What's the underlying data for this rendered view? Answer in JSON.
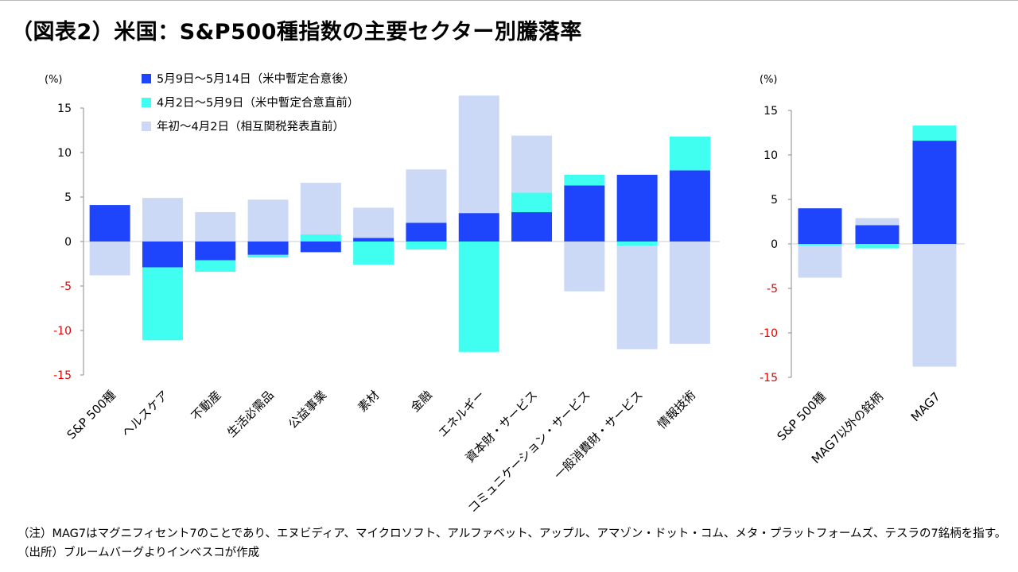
{
  "title": "（図表2）米国：S&P500種指数の主要セクター別騰落率",
  "notes": {
    "note": "（注）MAG7はマグニフィセント7のことであり、エヌビディア、マイクロソフト、アルファベット、アップル、アマゾン・ドット・コム、メタ・プラットフォームズ、テスラの7銘柄を指す。",
    "source": "（出所）ブルームバーグよりインベスコが作成"
  },
  "colors": {
    "s1": "#1f45fc",
    "s2": "#41fff0",
    "s3": "#ccd9f6",
    "negative_tick": "#e00000",
    "zero_line": "#cccccc",
    "axis": "#888888"
  },
  "chart_data": [
    {
      "type": "bar",
      "stacked": true,
      "unit_label": "(%)",
      "ylim": [
        -15,
        15
      ],
      "yticks": [
        15,
        10,
        5,
        0,
        -5,
        -10,
        -15
      ],
      "legend_position": "top",
      "categories": [
        "S&P 500種",
        "ヘルスケア",
        "不動産",
        "生活必需品",
        "公益事業",
        "素材",
        "金融",
        "エネルギー",
        "資本財・サービス",
        "コミュニケーション・サービス",
        "一般消費財・サービス",
        "情報技術"
      ],
      "series": [
        {
          "name": "5月9日～5月14日（米中暫定合意後）",
          "color_key": "s1",
          "values": [
            4.1,
            -2.9,
            -2.1,
            -1.5,
            -1.2,
            0.4,
            2.1,
            3.2,
            3.3,
            6.3,
            7.5,
            8.0
          ]
        },
        {
          "name": "4月2日～5月9日（米中暫定合意直前）",
          "color_key": "s2",
          "values": [
            0.0,
            -8.2,
            -1.3,
            -0.3,
            0.8,
            -2.6,
            -0.9,
            -12.4,
            2.2,
            1.2,
            -0.5,
            3.8
          ]
        },
        {
          "name": "年初～4月2日（相互関税発表直前）",
          "color_key": "s3",
          "values": [
            -3.8,
            4.9,
            3.3,
            4.7,
            5.8,
            3.4,
            6.0,
            13.2,
            6.4,
            -5.6,
            -11.6,
            -11.5
          ]
        }
      ]
    },
    {
      "type": "bar",
      "stacked": true,
      "unit_label": "(%)",
      "ylim": [
        -15,
        15
      ],
      "yticks": [
        15,
        10,
        5,
        0,
        -5,
        -10,
        -15
      ],
      "categories": [
        "S&P 500種",
        "MAG7以外の銘柄",
        "MAG7"
      ],
      "series": [
        {
          "name": "5月9日～5月14日（米中暫定合意後）",
          "color_key": "s1",
          "values": [
            4.0,
            2.1,
            11.6
          ]
        },
        {
          "name": "4月2日～5月9日（米中暫定合意直前）",
          "color_key": "s2",
          "values": [
            -0.2,
            -0.5,
            1.7
          ]
        },
        {
          "name": "年初～4月2日（相互関税発表直前）",
          "color_key": "s3",
          "values": [
            -3.6,
            0.8,
            -13.8
          ]
        }
      ]
    }
  ]
}
